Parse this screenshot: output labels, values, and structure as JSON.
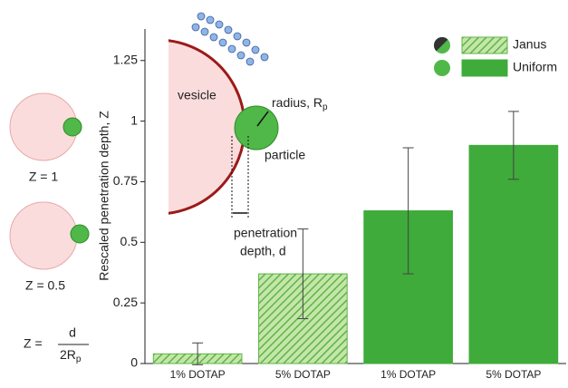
{
  "chart_data": {
    "type": "bar",
    "y_label": "Rescaled penetration depth, Z",
    "categories": [
      "1% DOTAP",
      "5% DOTAP",
      "1% DOTAP",
      "5% DOTAP"
    ],
    "series": [
      {
        "name": "Janus",
        "color": "#7cc45c",
        "hatch": true,
        "values": [
          0.04,
          0.37,
          null,
          null
        ],
        "errors": [
          0.045,
          0.185,
          null,
          null
        ]
      },
      {
        "name": "Uniform",
        "color": "#3fab3a",
        "hatch": false,
        "values": [
          null,
          null,
          0.63,
          0.9
        ],
        "errors": [
          null,
          null,
          0.26,
          0.14
        ]
      }
    ],
    "ylim": [
      0,
      1.38
    ],
    "yticks": [
      0,
      0.25,
      0.5,
      0.75,
      1,
      1.25
    ],
    "annotations": {
      "vesicle": "vesicle",
      "radius": "radius, R",
      "radius_sub": "p",
      "particle": "particle",
      "penetration1": "penetration",
      "penetration2": "depth, d",
      "z1": "Z = 1",
      "z05": "Z = 0.5",
      "formula_lhs": "Z =",
      "formula_num": "d",
      "formula_den": "2R",
      "formula_den_sub": "p"
    }
  }
}
